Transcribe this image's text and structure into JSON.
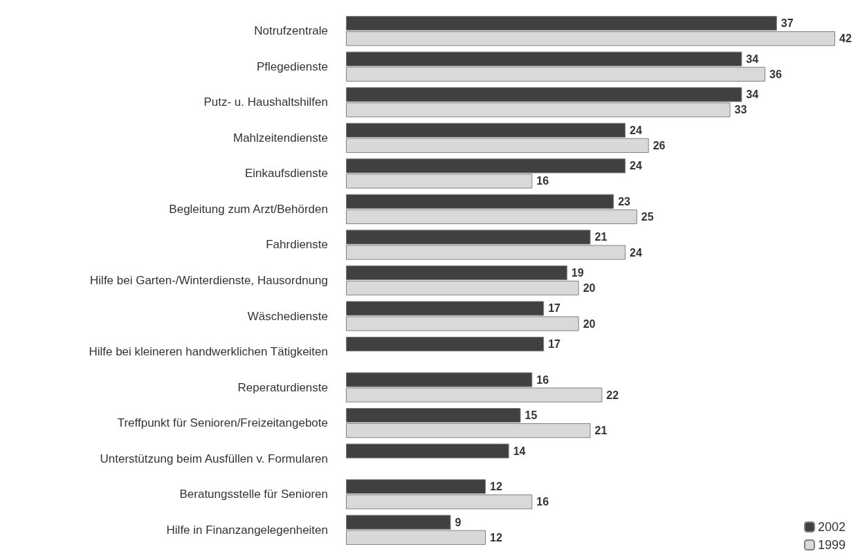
{
  "chart_data": {
    "type": "bar",
    "orientation": "horizontal",
    "categories": [
      "Notrufzentrale",
      "Pflegedienste",
      "Putz- u. Haushaltshilfen",
      "Mahlzeitendienste",
      "Einkaufsdienste",
      "Begleitung zum Arzt/Behörden",
      "Fahrdienste",
      "Hilfe bei Garten-/Winterdienste, Hausordnung",
      "Wäschedienste",
      "Hilfe bei kleineren handwerklichen Tätigkeiten",
      "Reperaturdienste",
      "Treffpunkt für Senioren/Freizeitangebote",
      "Unterstützung beim Ausfüllen v. Formularen",
      "Beratungsstelle für Senioren",
      "Hilfe in Finanzangelegenheiten"
    ],
    "series": [
      {
        "name": "2002",
        "color": "#404040",
        "values": [
          37,
          34,
          34,
          24,
          24,
          23,
          21,
          19,
          17,
          17,
          16,
          15,
          14,
          12,
          9
        ]
      },
      {
        "name": "1999",
        "color": "#d9d9d9",
        "values": [
          42,
          36,
          33,
          26,
          16,
          25,
          24,
          20,
          20,
          null,
          22,
          21,
          null,
          16,
          12
        ]
      }
    ],
    "data_labels": true,
    "legend": "bottom right",
    "grid": false
  }
}
